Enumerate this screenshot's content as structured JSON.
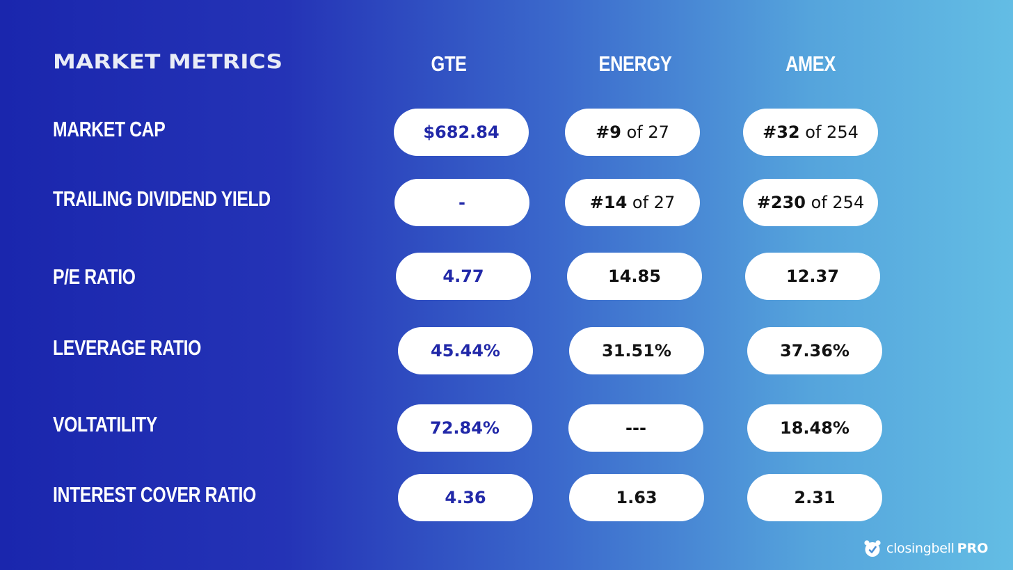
{
  "title": "MARKET METRICS",
  "columns": [
    "GTE",
    "ENERGY",
    "AMEX"
  ],
  "rows": [
    {
      "label": "MARKET CAP",
      "gte": "$682.84",
      "energy": {
        "rank": "#9",
        "of": "of 27"
      },
      "amex": {
        "rank": "#32",
        "of": "of 254"
      }
    },
    {
      "label": "TRAILING DIVIDEND YIELD",
      "gte": "-",
      "energy": {
        "rank": "#14",
        "of": "of 27"
      },
      "amex": {
        "rank": "#230",
        "of": "of 254"
      }
    },
    {
      "label": "P/E RATIO",
      "gte": "4.77",
      "energy": "14.85",
      "amex": "12.37"
    },
    {
      "label": "LEVERAGE RATIO",
      "gte": "45.44%",
      "energy": "31.51%",
      "amex": "37.36%"
    },
    {
      "label": "VOLTATILITY",
      "gte": "72.84%",
      "energy": "---",
      "amex": "18.48%"
    },
    {
      "label": "INTEREST COVER RATIO",
      "gte": "4.36",
      "energy": "1.63",
      "amex": "2.31"
    }
  ],
  "brand": {
    "name": "closingbell",
    "suffix": "PRO",
    "icon": "alarm-clock-icon"
  },
  "colors": {
    "gte_value": "#2128a8",
    "pill_bg": "#ffffff",
    "gradient_left": "#1a26ad",
    "gradient_right": "#63bde4"
  }
}
